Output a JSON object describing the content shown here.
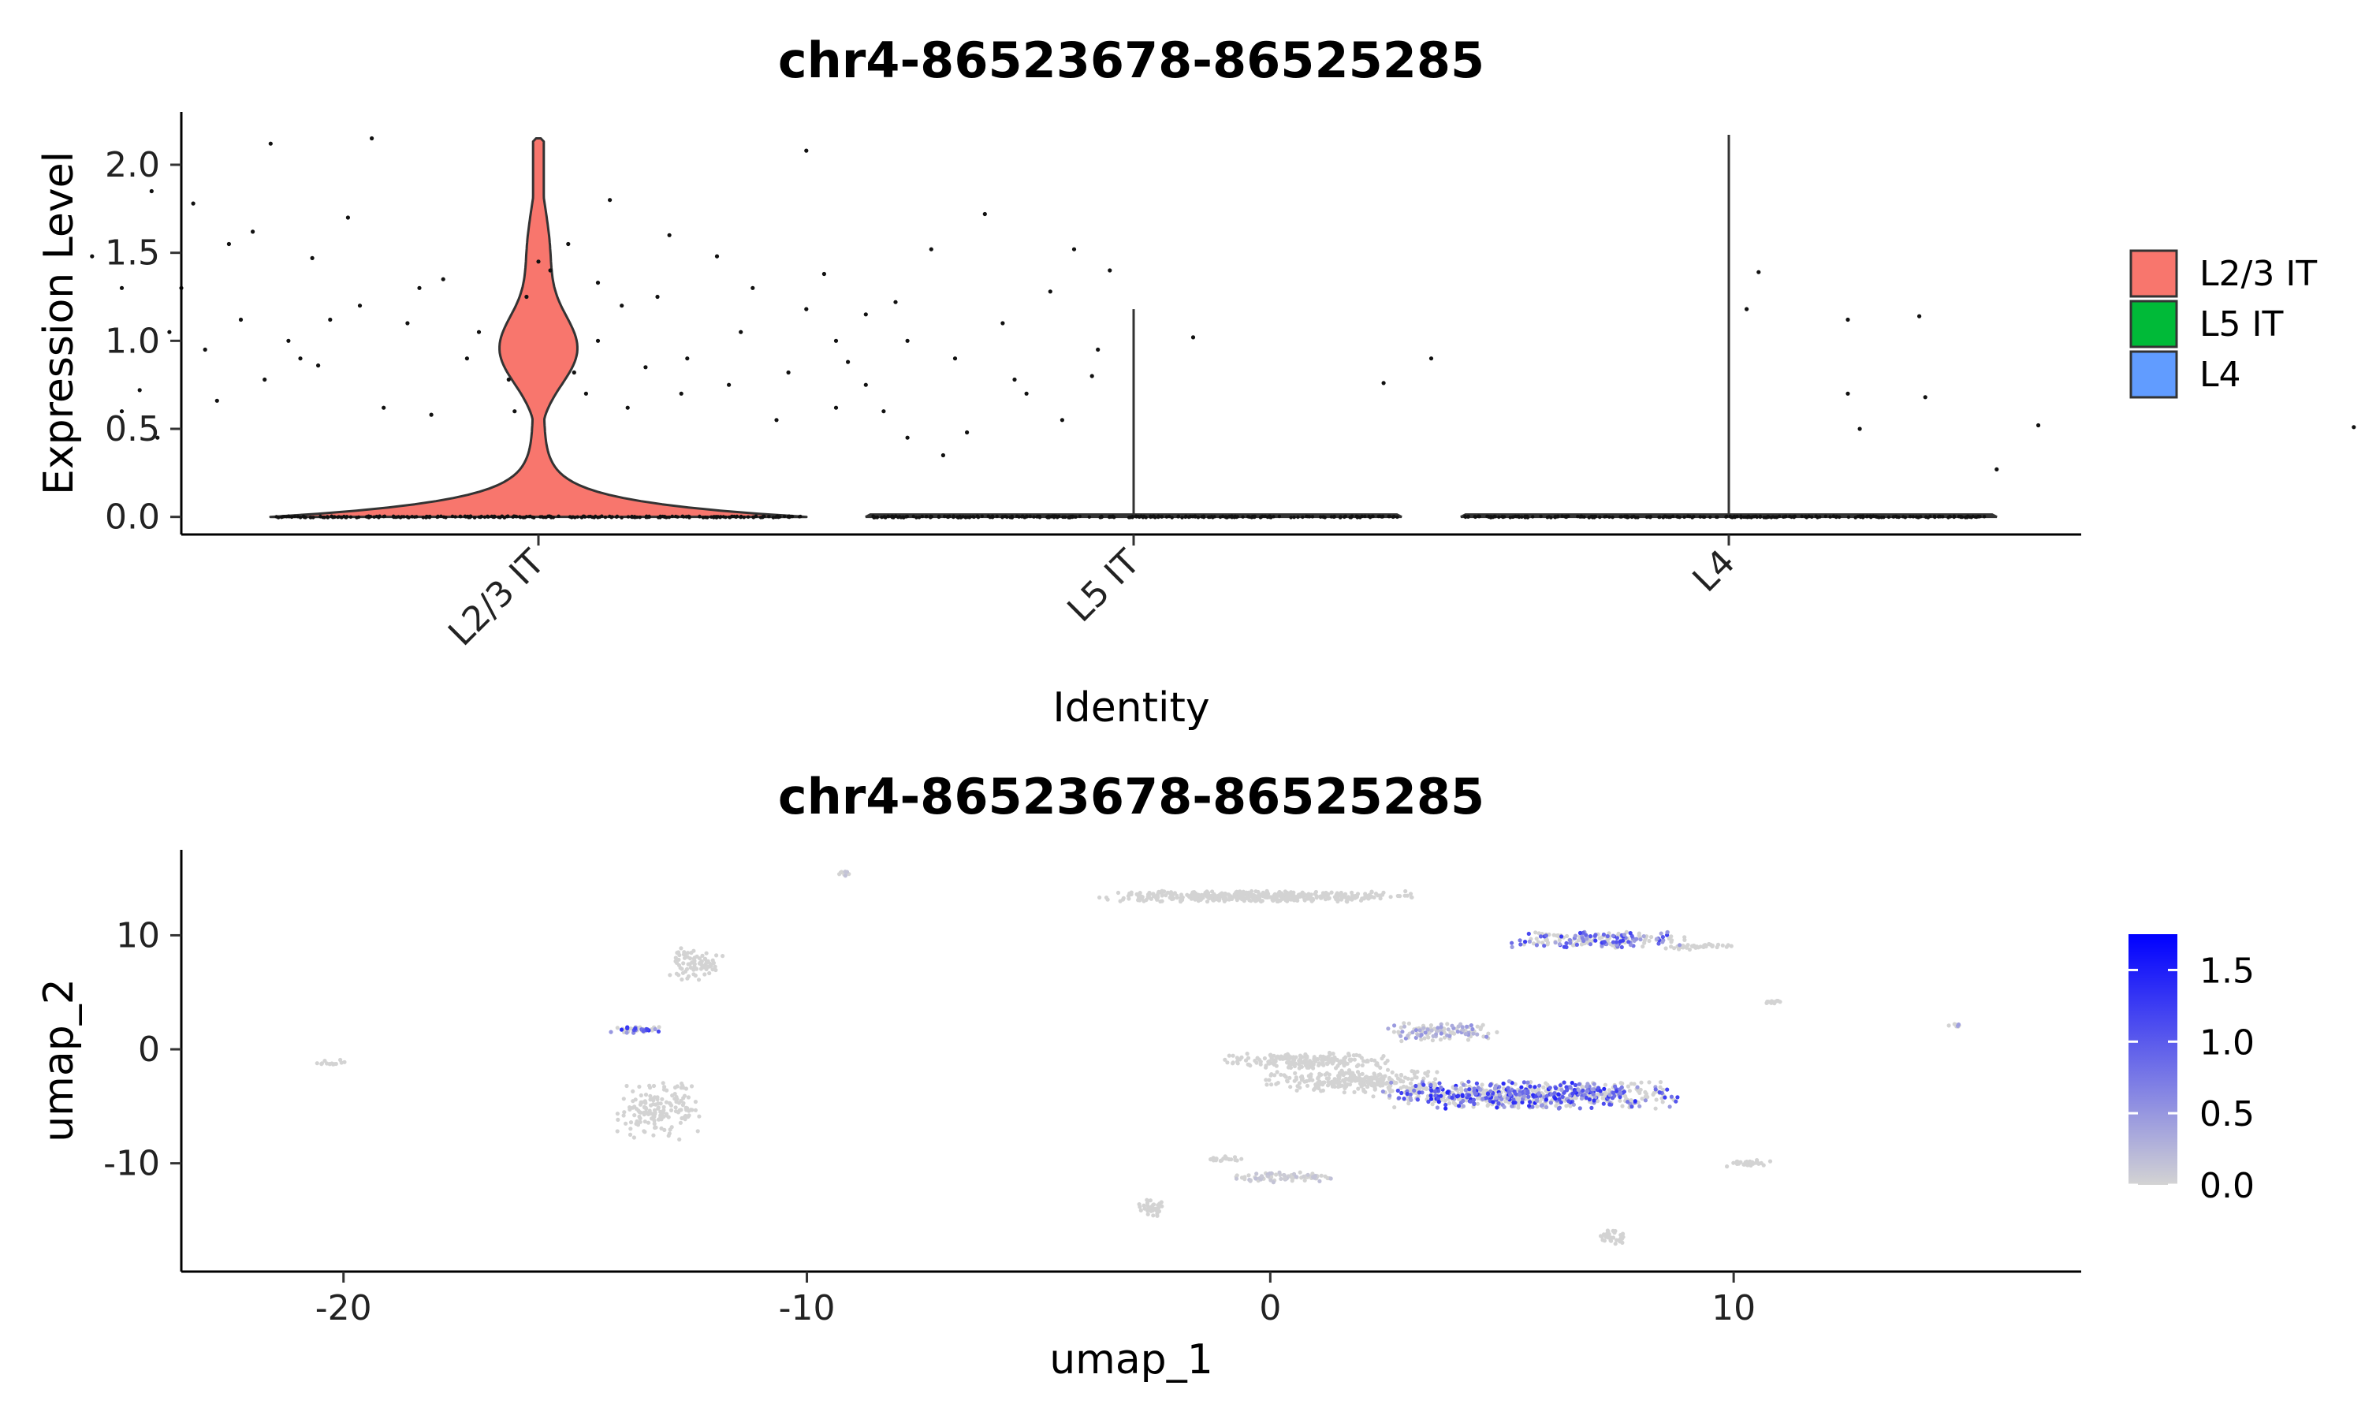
{
  "chart_data": [
    {
      "type": "violin",
      "title": "chr4-86523678-86525285",
      "xlabel": "Identity",
      "ylabel": "Expression Level",
      "ylim": [
        -0.1,
        2.3
      ],
      "yticks": [
        0.0,
        0.5,
        1.0,
        1.5,
        2.0
      ],
      "ytick_labels": [
        "0.0",
        "0.5",
        "1.0",
        "1.5",
        "2.0"
      ],
      "categories": [
        "L2/3 IT",
        "L5 IT",
        "L4"
      ],
      "colors": [
        "#F8766D",
        "#00BA38",
        "#619CFF"
      ],
      "legend": {
        "position": "right",
        "entries": [
          "L2/3 IT",
          "L5 IT",
          "L4"
        ]
      },
      "violin_max": [
        2.15,
        1.18,
        2.17
      ],
      "nonzero_points": [
        [
          0.55,
          2.12
        ],
        [
          0.72,
          2.15
        ],
        [
          0.35,
          1.85
        ],
        [
          0.42,
          1.78
        ],
        [
          0.48,
          1.55
        ],
        [
          0.52,
          1.62
        ],
        [
          0.62,
          1.47
        ],
        [
          0.68,
          1.7
        ],
        [
          0.25,
          1.48
        ],
        [
          0.3,
          1.3
        ],
        [
          0.38,
          1.05
        ],
        [
          0.44,
          0.95
        ],
        [
          0.5,
          1.12
        ],
        [
          0.58,
          1.0
        ],
        [
          0.63,
          0.86
        ],
        [
          0.7,
          1.2
        ],
        [
          0.78,
          1.1
        ],
        [
          0.84,
          1.35
        ],
        [
          0.88,
          0.9
        ],
        [
          0.95,
          0.78
        ],
        [
          0.98,
          1.25
        ],
        [
          1.02,
          1.4
        ],
        [
          1.05,
          1.55
        ],
        [
          1.08,
          0.7
        ],
        [
          1.1,
          1.0
        ],
        [
          1.12,
          1.8
        ],
        [
          1.15,
          0.62
        ],
        [
          1.18,
          0.85
        ],
        [
          1.2,
          1.25
        ],
        [
          1.22,
          1.6
        ],
        [
          1.25,
          0.9
        ],
        [
          1.3,
          1.48
        ],
        [
          1.32,
          0.75
        ],
        [
          1.36,
          1.3
        ],
        [
          1.4,
          0.55
        ],
        [
          1.45,
          2.08
        ],
        [
          1.48,
          1.38
        ],
        [
          1.52,
          0.88
        ],
        [
          1.55,
          1.15
        ],
        [
          1.58,
          0.6
        ],
        [
          1.62,
          1.0
        ],
        [
          1.66,
          1.52
        ],
        [
          1.7,
          0.9
        ],
        [
          1.75,
          1.72
        ],
        [
          1.78,
          1.1
        ],
        [
          1.82,
          0.7
        ],
        [
          1.86,
          1.28
        ],
        [
          1.9,
          1.52
        ],
        [
          1.94,
          0.95
        ],
        [
          0.3,
          0.6
        ],
        [
          0.36,
          0.45
        ],
        [
          0.33,
          0.72
        ],
        [
          0.46,
          0.66
        ],
        [
          0.54,
          0.78
        ],
        [
          0.6,
          0.9
        ],
        [
          0.74,
          0.62
        ],
        [
          0.82,
          0.58
        ],
        [
          0.9,
          1.05
        ],
        [
          0.96,
          0.6
        ],
        [
          1.06,
          0.82
        ],
        [
          1.14,
          1.2
        ],
        [
          1.24,
          0.7
        ],
        [
          1.34,
          1.05
        ],
        [
          1.42,
          0.82
        ],
        [
          1.5,
          0.62
        ],
        [
          1.6,
          1.22
        ],
        [
          1.68,
          0.35
        ],
        [
          1.72,
          0.48
        ],
        [
          1.8,
          0.78
        ],
        [
          1.88,
          0.55
        ],
        [
          1.93,
          0.8
        ],
        [
          1.96,
          1.4
        ],
        [
          1.5,
          1.0
        ],
        [
          1.55,
          0.75
        ],
        [
          1.62,
          0.45
        ],
        [
          1.45,
          1.18
        ],
        [
          0.4,
          1.3
        ],
        [
          0.65,
          1.12
        ],
        [
          0.8,
          1.3
        ],
        [
          1.0,
          1.45
        ],
        [
          1.1,
          1.33
        ],
        [
          2.1,
          1.02
        ],
        [
          2.42,
          0.76
        ],
        [
          2.5,
          0.9
        ],
        [
          3.03,
          1.18
        ],
        [
          3.2,
          1.12
        ],
        [
          3.32,
          1.14
        ],
        [
          3.05,
          1.39
        ],
        [
          3.2,
          0.7
        ],
        [
          3.22,
          0.5
        ],
        [
          3.33,
          0.68
        ],
        [
          3.45,
          0.27
        ],
        [
          3.52,
          0.52
        ],
        [
          4.05,
          0.51
        ],
        [
          4.45,
          0.65
        ],
        [
          4.6,
          0.64
        ],
        [
          4.65,
          0.9
        ],
        [
          4.39,
          2.17
        ]
      ],
      "axes_note": "y = expression level; x = category position"
    },
    {
      "type": "scatter",
      "title": "chr4-86523678-86525285",
      "xlabel": "umap_1",
      "ylabel": "umap_2",
      "xlim": [
        -23.5,
        17.5
      ],
      "ylim": [
        -19.5,
        17.5
      ],
      "xticks": [
        -20,
        -10,
        0,
        10
      ],
      "xtick_labels": [
        "-20",
        "-10",
        "0",
        "10"
      ],
      "yticks": [
        10,
        0,
        -10
      ],
      "ytick_labels": [
        "10",
        "0",
        "-10"
      ],
      "colorbar": {
        "min": 0.0,
        "max": 1.75,
        "ticks": [
          "0.0",
          "0.5",
          "1.0",
          "1.5"
        ],
        "tick_values": [
          0.0,
          0.5,
          1.0,
          1.5
        ],
        "low": "#D3D3D3",
        "high": "#0000FF",
        "position": "right"
      },
      "clusters": [
        {
          "cx": -0.3,
          "cy": 13.4,
          "rx": 3.4,
          "ry": 0.5,
          "expr": 0.0,
          "n": 420
        },
        {
          "cx": 7.1,
          "cy": 9.6,
          "rx": 1.9,
          "ry": 0.7,
          "expr": 0.8,
          "n": 200
        },
        {
          "cx": 9.3,
          "cy": 9.0,
          "rx": 0.9,
          "ry": 0.25,
          "expr": 0.0,
          "n": 40
        },
        {
          "cx": 5.5,
          "cy": -4.0,
          "rx": 3.3,
          "ry": 1.2,
          "expr": 0.9,
          "n": 700
        },
        {
          "cx": 1.8,
          "cy": -2.8,
          "rx": 1.9,
          "ry": 1.0,
          "expr": 0.0,
          "n": 260
        },
        {
          "cx": 0.8,
          "cy": -1.0,
          "rx": 1.8,
          "ry": 0.7,
          "expr": 0.0,
          "n": 200
        },
        {
          "cx": 3.7,
          "cy": 1.5,
          "rx": 1.2,
          "ry": 0.8,
          "expr": 0.35,
          "n": 110
        },
        {
          "cx": 0.3,
          "cy": -11.2,
          "rx": 1.1,
          "ry": 0.5,
          "expr": 0.1,
          "n": 80
        },
        {
          "cx": -1.0,
          "cy": -9.6,
          "rx": 0.4,
          "ry": 0.25,
          "expr": 0.0,
          "n": 20
        },
        {
          "cx": -2.6,
          "cy": -14.0,
          "rx": 0.3,
          "ry": 0.8,
          "expr": 0.0,
          "n": 35
        },
        {
          "cx": 7.4,
          "cy": -16.5,
          "rx": 0.3,
          "ry": 0.6,
          "expr": 0.0,
          "n": 30
        },
        {
          "cx": 10.3,
          "cy": -10.0,
          "rx": 0.5,
          "ry": 0.3,
          "expr": 0.0,
          "n": 35
        },
        {
          "cx": 10.9,
          "cy": 4.2,
          "rx": 0.3,
          "ry": 0.2,
          "expr": 0.0,
          "n": 12
        },
        {
          "cx": 14.8,
          "cy": 2.1,
          "rx": 0.2,
          "ry": 0.15,
          "expr": 0.5,
          "n": 8
        },
        {
          "cx": -12.4,
          "cy": 7.5,
          "rx": 0.6,
          "ry": 1.4,
          "expr": 0.0,
          "n": 80
        },
        {
          "cx": -13.7,
          "cy": 1.7,
          "rx": 0.55,
          "ry": 0.3,
          "expr": 0.9,
          "n": 45
        },
        {
          "cx": -13.2,
          "cy": -5.5,
          "rx": 0.9,
          "ry": 2.6,
          "expr": 0.0,
          "n": 160
        },
        {
          "cx": -20.3,
          "cy": -1.2,
          "rx": 0.4,
          "ry": 0.3,
          "expr": 0.0,
          "n": 14
        },
        {
          "cx": -9.2,
          "cy": 15.4,
          "rx": 0.15,
          "ry": 0.2,
          "expr": 0.1,
          "n": 8
        }
      ]
    }
  ]
}
